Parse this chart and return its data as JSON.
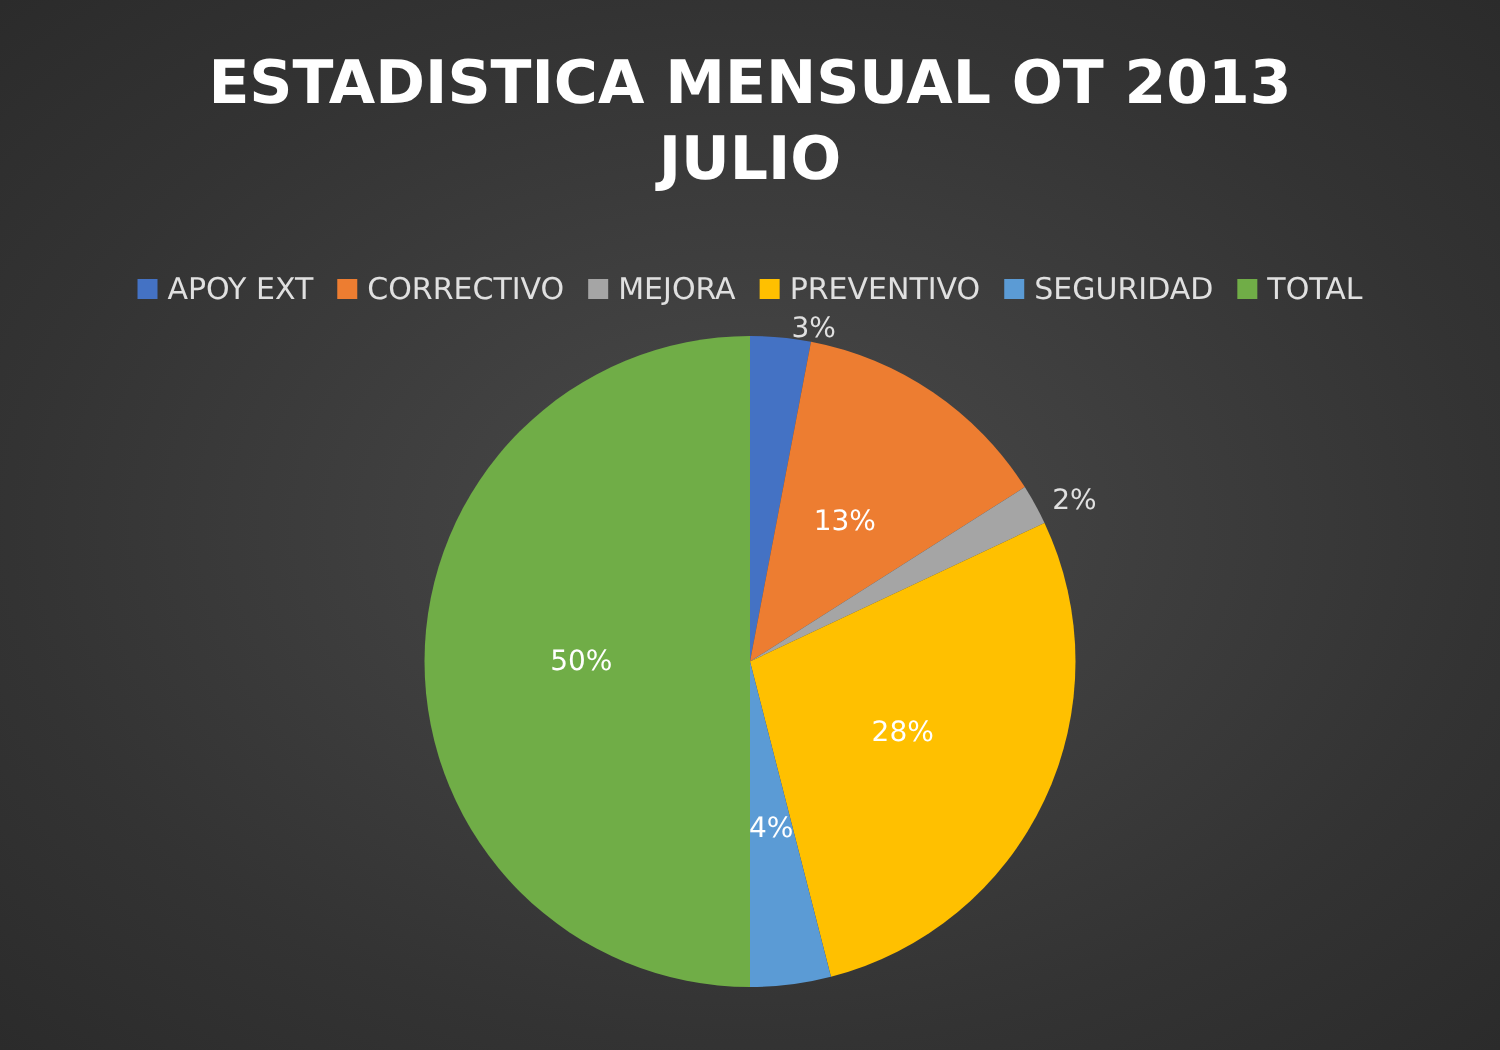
{
  "chart_data": {
    "type": "pie",
    "title": "ESTADISTICA MENSUAL OT 2013",
    "subtitle": "JULIO",
    "categories": [
      "APOY EXT",
      "CORRECTIVO",
      "MEJORA",
      "PREVENTIVO",
      "SEGURIDAD",
      "TOTAL"
    ],
    "values": [
      3,
      13,
      2,
      28,
      4,
      50
    ],
    "colors": [
      "#4472c4",
      "#ed7d31",
      "#a5a5a5",
      "#ffc000",
      "#5b9bd5",
      "#70ad47"
    ],
    "value_labels": [
      "3%",
      "13%",
      "2%",
      "28%",
      "4%",
      "50%"
    ],
    "legend": "top"
  }
}
